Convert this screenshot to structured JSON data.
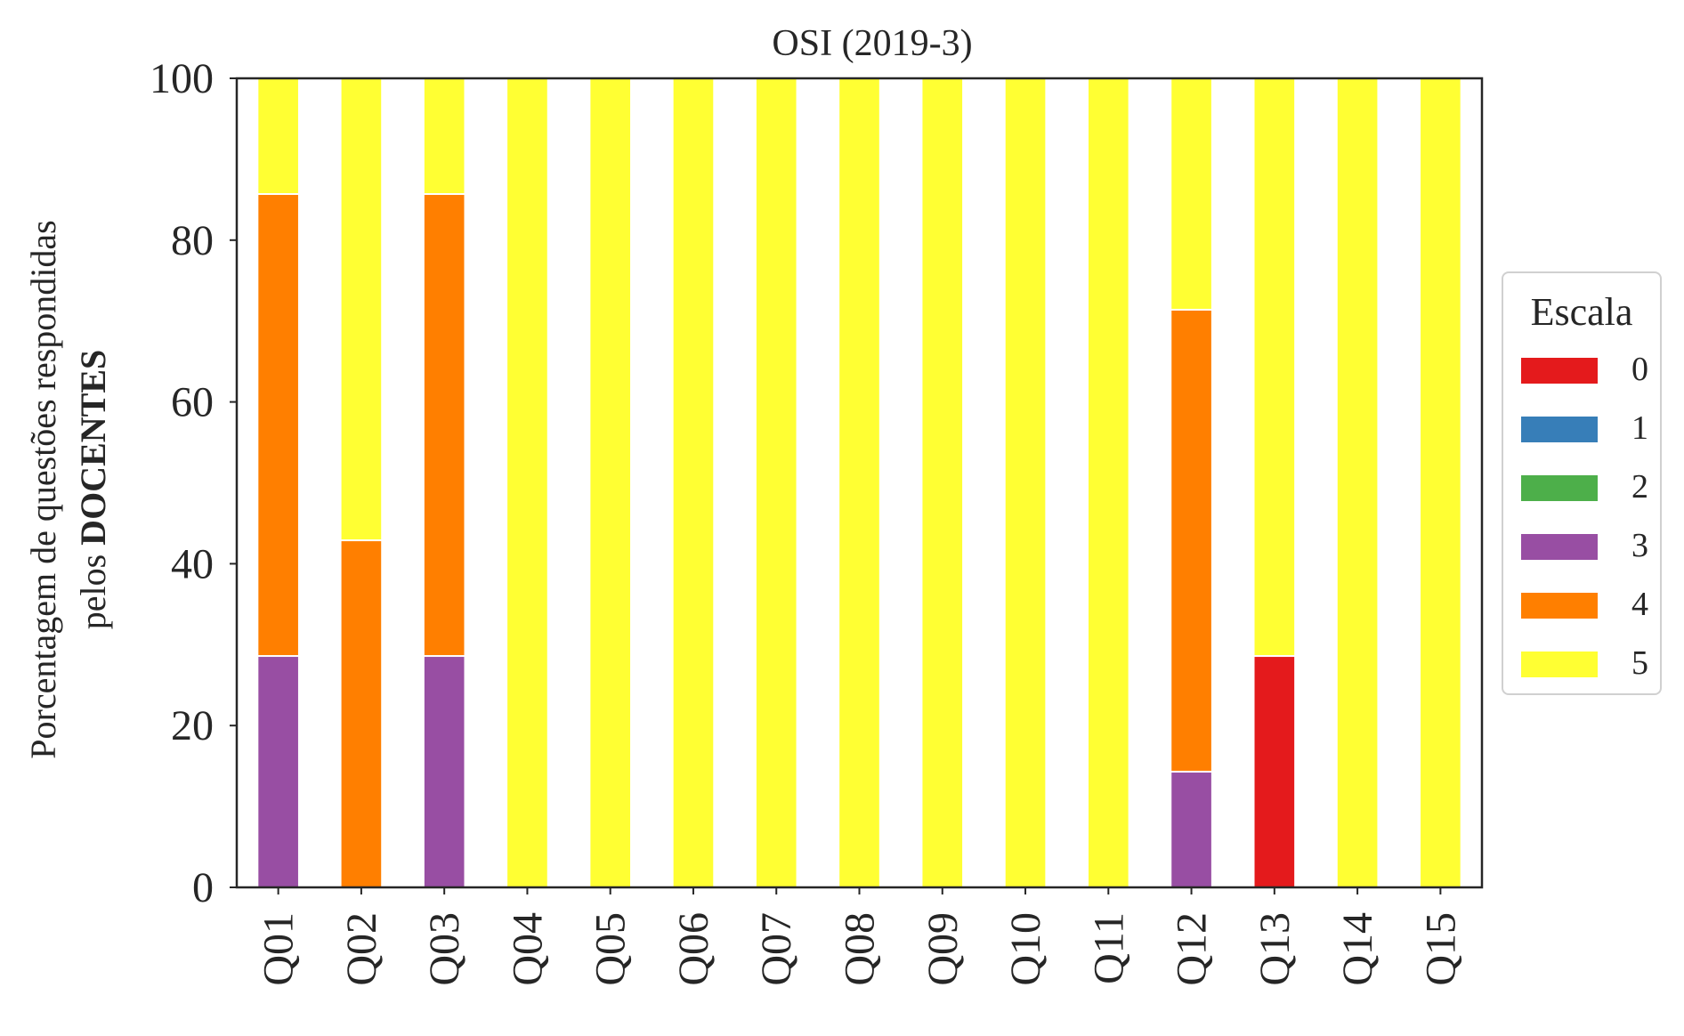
{
  "chart_data": {
    "type": "bar",
    "stacked": true,
    "title": "OSI (2019-3)",
    "ylabel_line1": "Porcentagem de questões respondidas",
    "ylabel_line2_prefix": "pelos ",
    "ylabel_line2_bold": "DOCENTES",
    "xlabel": "",
    "ylim": [
      0,
      100
    ],
    "yticks": [
      "0",
      "20",
      "40",
      "60",
      "80",
      "100"
    ],
    "categories": [
      "Q01",
      "Q02",
      "Q03",
      "Q04",
      "Q05",
      "Q06",
      "Q07",
      "Q08",
      "Q09",
      "Q10",
      "Q11",
      "Q12",
      "Q13",
      "Q14",
      "Q15"
    ],
    "legend_title": "Escala",
    "legend_position": "right",
    "grid": false,
    "series": [
      {
        "name": "0",
        "color": "#e41a1c",
        "values": [
          0,
          0,
          0,
          0,
          0,
          0,
          0,
          0,
          0,
          0,
          0,
          0,
          28.6,
          0,
          0
        ]
      },
      {
        "name": "1",
        "color": "#377eb8",
        "values": [
          0,
          0,
          0,
          0,
          0,
          0,
          0,
          0,
          0,
          0,
          0,
          0,
          0,
          0,
          0
        ]
      },
      {
        "name": "2",
        "color": "#4daf4a",
        "values": [
          0,
          0,
          0,
          0,
          0,
          0,
          0,
          0,
          0,
          0,
          0,
          0,
          0,
          0,
          0
        ]
      },
      {
        "name": "3",
        "color": "#984ea3",
        "values": [
          28.6,
          0,
          28.6,
          0,
          0,
          0,
          0,
          0,
          0,
          0,
          0,
          14.3,
          0,
          0,
          0
        ]
      },
      {
        "name": "4",
        "color": "#ff7f00",
        "values": [
          57.1,
          42.9,
          57.1,
          0,
          0,
          0,
          0,
          0,
          0,
          0,
          0,
          57.1,
          0,
          0,
          0
        ]
      },
      {
        "name": "5",
        "color": "#ffff33",
        "values": [
          14.3,
          57.1,
          14.3,
          100,
          100,
          100,
          100,
          100,
          100,
          100,
          100,
          28.6,
          71.4,
          100,
          100
        ]
      }
    ]
  }
}
